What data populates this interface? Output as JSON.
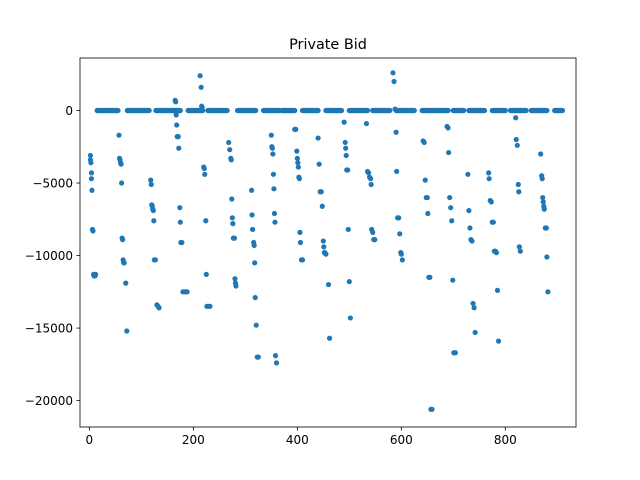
{
  "chart_data": {
    "type": "scatter",
    "title": "Private Bid",
    "xlabel": "",
    "ylabel": "",
    "xlim": [
      -18,
      936
    ],
    "ylim": [
      -21820,
      3620
    ],
    "x_ticks": [
      0,
      200,
      400,
      600,
      800
    ],
    "x_tick_labels": [
      "0",
      "200",
      "400",
      "600",
      "800"
    ],
    "y_ticks": [
      0,
      -5000,
      -10000,
      -15000,
      -20000
    ],
    "y_tick_labels": [
      "0",
      "−5000",
      "−10000",
      "−15000",
      "−20000"
    ],
    "grid": false,
    "legend": "none",
    "marker_color": "#1f77b4",
    "zero_runs": [
      [
        15,
        55
      ],
      [
        73,
        115
      ],
      [
        128,
        175
      ],
      [
        190,
        218
      ],
      [
        228,
        265
      ],
      [
        285,
        320
      ],
      [
        335,
        365
      ],
      [
        370,
        395
      ],
      [
        410,
        440
      ],
      [
        455,
        485
      ],
      [
        500,
        535
      ],
      [
        545,
        578
      ],
      [
        590,
        625
      ],
      [
        640,
        690
      ],
      [
        700,
        720
      ],
      [
        730,
        760
      ],
      [
        775,
        800
      ],
      [
        810,
        840
      ],
      [
        850,
        880
      ],
      [
        895,
        910
      ]
    ],
    "points": [
      [
        2,
        -3100
      ],
      [
        2,
        -3400
      ],
      [
        3,
        -3600
      ],
      [
        4,
        -4300
      ],
      [
        4,
        -4700
      ],
      [
        5,
        -5500
      ],
      [
        6,
        -8200
      ],
      [
        7,
        -8300
      ],
      [
        8,
        -11300
      ],
      [
        9,
        -11400
      ],
      [
        10,
        -11400
      ],
      [
        11,
        -11400
      ],
      [
        12,
        -11300
      ],
      [
        57,
        -1700
      ],
      [
        58,
        -3300
      ],
      [
        59,
        -3400
      ],
      [
        60,
        -3600
      ],
      [
        61,
        -3700
      ],
      [
        62,
        -5000
      ],
      [
        63,
        -8800
      ],
      [
        64,
        -8900
      ],
      [
        65,
        -10300
      ],
      [
        66,
        -10500
      ],
      [
        67,
        -10500
      ],
      [
        70,
        -11900
      ],
      [
        72,
        -15200
      ],
      [
        118,
        -4800
      ],
      [
        119,
        -5100
      ],
      [
        120,
        -6500
      ],
      [
        121,
        -6600
      ],
      [
        122,
        -6800
      ],
      [
        123,
        -6900
      ],
      [
        124,
        -7600
      ],
      [
        125,
        -10300
      ],
      [
        127,
        -10300
      ],
      [
        130,
        -13400
      ],
      [
        132,
        -13500
      ],
      [
        134,
        -13600
      ],
      [
        165,
        700
      ],
      [
        166,
        600
      ],
      [
        167,
        -300
      ],
      [
        168,
        -1000
      ],
      [
        169,
        -1800
      ],
      [
        171,
        -1800
      ],
      [
        172,
        -2600
      ],
      [
        174,
        -6700
      ],
      [
        175,
        -7700
      ],
      [
        176,
        -9100
      ],
      [
        178,
        -9100
      ],
      [
        180,
        -12500
      ],
      [
        183,
        -12500
      ],
      [
        186,
        -12500
      ],
      [
        188,
        -12500
      ],
      [
        213,
        2400
      ],
      [
        215,
        1600
      ],
      [
        216,
        300
      ],
      [
        217,
        200
      ],
      [
        220,
        -3900
      ],
      [
        221,
        -4000
      ],
      [
        222,
        -4400
      ],
      [
        224,
        -7600
      ],
      [
        225,
        -11300
      ],
      [
        226,
        -13500
      ],
      [
        229,
        -13500
      ],
      [
        232,
        -13500
      ],
      [
        268,
        -2200
      ],
      [
        270,
        -2700
      ],
      [
        272,
        -3300
      ],
      [
        273,
        -3400
      ],
      [
        274,
        -6100
      ],
      [
        275,
        -7400
      ],
      [
        276,
        -7800
      ],
      [
        277,
        -8800
      ],
      [
        279,
        -8800
      ],
      [
        280,
        -11600
      ],
      [
        281,
        -11900
      ],
      [
        282,
        -12100
      ],
      [
        312,
        -5500
      ],
      [
        313,
        -7200
      ],
      [
        314,
        -8200
      ],
      [
        316,
        -9100
      ],
      [
        317,
        -9300
      ],
      [
        318,
        -10500
      ],
      [
        319,
        -12900
      ],
      [
        321,
        -14800
      ],
      [
        323,
        -17000
      ],
      [
        325,
        -17000
      ],
      [
        350,
        -1700
      ],
      [
        351,
        -2500
      ],
      [
        352,
        -2600
      ],
      [
        353,
        -3000
      ],
      [
        354,
        -4400
      ],
      [
        355,
        -5400
      ],
      [
        356,
        -7100
      ],
      [
        357,
        -7700
      ],
      [
        358,
        -16900
      ],
      [
        360,
        -17400
      ],
      [
        395,
        -1300
      ],
      [
        397,
        -1300
      ],
      [
        399,
        -2800
      ],
      [
        400,
        -3300
      ],
      [
        401,
        -3600
      ],
      [
        402,
        -3900
      ],
      [
        403,
        -4600
      ],
      [
        404,
        -4700
      ],
      [
        405,
        -8400
      ],
      [
        406,
        -9100
      ],
      [
        408,
        -10300
      ],
      [
        410,
        -10300
      ],
      [
        440,
        -1900
      ],
      [
        442,
        -3700
      ],
      [
        444,
        -5600
      ],
      [
        446,
        -5600
      ],
      [
        448,
        -6600
      ],
      [
        450,
        -9000
      ],
      [
        451,
        -9400
      ],
      [
        452,
        -9800
      ],
      [
        453,
        -9800
      ],
      [
        455,
        -9900
      ],
      [
        460,
        -12000
      ],
      [
        462,
        -15700
      ],
      [
        490,
        -800
      ],
      [
        492,
        -2200
      ],
      [
        493,
        -2600
      ],
      [
        494,
        -3100
      ],
      [
        495,
        -4100
      ],
      [
        497,
        -4100
      ],
      [
        498,
        -8200
      ],
      [
        500,
        -11800
      ],
      [
        502,
        -14300
      ],
      [
        533,
        -900
      ],
      [
        535,
        -4200
      ],
      [
        537,
        -4300
      ],
      [
        539,
        -4600
      ],
      [
        541,
        -4700
      ],
      [
        542,
        -5100
      ],
      [
        543,
        -8200
      ],
      [
        545,
        -8400
      ],
      [
        547,
        -8900
      ],
      [
        549,
        -8900
      ],
      [
        584,
        2600
      ],
      [
        586,
        2000
      ],
      [
        588,
        100
      ],
      [
        590,
        -1500
      ],
      [
        591,
        -4200
      ],
      [
        593,
        -7400
      ],
      [
        595,
        -7400
      ],
      [
        597,
        -8500
      ],
      [
        599,
        -9800
      ],
      [
        600,
        -9900
      ],
      [
        602,
        -10300
      ],
      [
        642,
        -2100
      ],
      [
        644,
        -2200
      ],
      [
        646,
        -4800
      ],
      [
        648,
        -6000
      ],
      [
        650,
        -6000
      ],
      [
        651,
        -7100
      ],
      [
        653,
        -11500
      ],
      [
        655,
        -11500
      ],
      [
        657,
        -20600
      ],
      [
        659,
        -20600
      ],
      [
        688,
        -1100
      ],
      [
        690,
        -1200
      ],
      [
        691,
        -2900
      ],
      [
        693,
        -6000
      ],
      [
        695,
        -6700
      ],
      [
        697,
        -7600
      ],
      [
        699,
        -11700
      ],
      [
        701,
        -16700
      ],
      [
        704,
        -16700
      ],
      [
        728,
        -4400
      ],
      [
        730,
        -6900
      ],
      [
        732,
        -8100
      ],
      [
        734,
        -8900
      ],
      [
        736,
        -9000
      ],
      [
        738,
        -13300
      ],
      [
        740,
        -13600
      ],
      [
        742,
        -15300
      ],
      [
        768,
        -4300
      ],
      [
        769,
        -4700
      ],
      [
        771,
        -6200
      ],
      [
        773,
        -6300
      ],
      [
        775,
        -7700
      ],
      [
        777,
        -7700
      ],
      [
        779,
        -9700
      ],
      [
        781,
        -9700
      ],
      [
        783,
        -9800
      ],
      [
        785,
        -12400
      ],
      [
        787,
        -15900
      ],
      [
        820,
        -500
      ],
      [
        821,
        -2000
      ],
      [
        823,
        -2400
      ],
      [
        825,
        -5100
      ],
      [
        826,
        -5600
      ],
      [
        827,
        -9400
      ],
      [
        829,
        -9700
      ],
      [
        868,
        -3000
      ],
      [
        870,
        -4500
      ],
      [
        871,
        -4700
      ],
      [
        872,
        -6000
      ],
      [
        873,
        -6300
      ],
      [
        874,
        -6600
      ],
      [
        875,
        -6800
      ],
      [
        877,
        -8100
      ],
      [
        879,
        -8100
      ],
      [
        880,
        -10100
      ],
      [
        882,
        -12500
      ]
    ]
  }
}
